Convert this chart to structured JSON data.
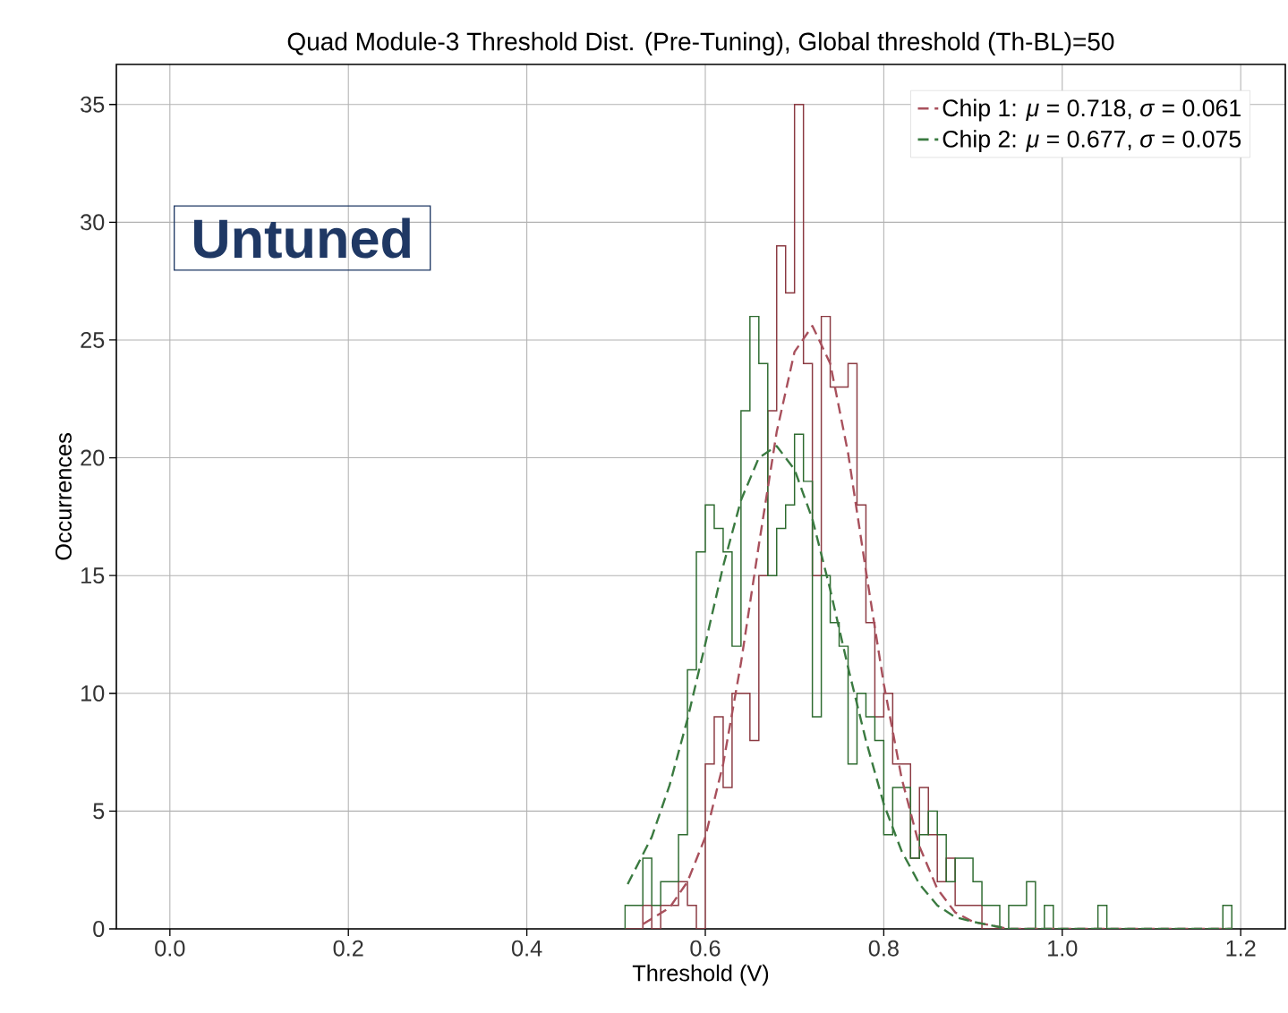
{
  "chart_data": {
    "type": "histogram",
    "title": "Quad Module-3 Threshold Dist. (Pre-Tuning), Global threshold (Th-BL)=50",
    "xlabel": "Threshold (V)",
    "ylabel": "Occurrences",
    "annotations": [
      "Untuned"
    ],
    "bins": [
      0.51,
      0.52,
      0.53,
      0.54,
      0.55,
      0.56,
      0.57,
      0.58,
      0.59,
      0.6,
      0.61,
      0.62,
      0.63,
      0.64,
      0.65,
      0.66,
      0.67,
      0.68,
      0.69,
      0.7,
      0.71,
      0.72,
      0.73,
      0.74,
      0.75,
      0.76,
      0.77,
      0.78,
      0.79,
      0.8,
      0.81,
      0.82,
      0.83,
      0.84,
      0.85,
      0.86,
      0.87,
      0.88,
      0.89,
      0.9,
      0.91,
      0.92,
      0.93,
      0.94,
      0.95,
      0.96,
      0.97,
      0.98,
      0.99,
      1.0,
      1.01,
      1.02,
      1.03,
      1.04,
      1.05,
      1.06,
      1.07,
      1.08,
      1.09,
      1.1,
      1.11,
      1.12,
      1.13,
      1.14,
      1.15,
      1.16,
      1.17,
      1.18,
      1.19
    ],
    "series": [
      {
        "color": "#8b3a42",
        "values": [
          0,
          0,
          1,
          0,
          1,
          1,
          2,
          1,
          0,
          7,
          9,
          6,
          10,
          10,
          8,
          15,
          22,
          29,
          27,
          35,
          24,
          15,
          26,
          23,
          23,
          24,
          18,
          13,
          9,
          10,
          7,
          7,
          3,
          6,
          4,
          2,
          3,
          1,
          1,
          1,
          0,
          0,
          0,
          0,
          0,
          0,
          0,
          0,
          0,
          0,
          0,
          0,
          0,
          0,
          0,
          0,
          0,
          0,
          0,
          0,
          0,
          0,
          0,
          0,
          0,
          0,
          0,
          0
        ]
      },
      {
        "color": "#2e6b30",
        "values": [
          1,
          1,
          3,
          1,
          2,
          2,
          4,
          11,
          16,
          18,
          17,
          16,
          12,
          22,
          26,
          24,
          15,
          17,
          18,
          21,
          19,
          9,
          15,
          13,
          12,
          7,
          10,
          9,
          8,
          4,
          6,
          6,
          3,
          4,
          5,
          4,
          2,
          3,
          3,
          2,
          1,
          1,
          0,
          1,
          1,
          2,
          0,
          1,
          0,
          0,
          0,
          0,
          0,
          1,
          0,
          0,
          0,
          0,
          0,
          0,
          0,
          0,
          0,
          0,
          0,
          0,
          0,
          1
        ]
      },
      {
        "type": "line",
        "name": "Chip 1: *μ* = 0.718, *σ* = 0.061",
        "color": "#a8505c",
        "line_style": "dashed",
        "x": [
          0.53,
          0.56,
          0.58,
          0.6,
          0.62,
          0.64,
          0.66,
          0.68,
          0.7,
          0.72,
          0.74,
          0.76,
          0.78,
          0.8,
          0.82,
          0.84,
          0.86,
          0.88,
          0.9,
          0.94,
          1.0,
          1.19
        ],
        "values": [
          0.2,
          0.9,
          2.0,
          3.9,
          7.0,
          11.3,
          16.3,
          21.1,
          24.5,
          25.6,
          24.0,
          20.2,
          15.2,
          10.4,
          6.4,
          3.5,
          1.7,
          0.7,
          0.3,
          0,
          0,
          0
        ]
      },
      {
        "type": "line",
        "name": "Chip 2: *μ* = 0.677, *σ* = 0.075",
        "color": "#3a7a40",
        "line_style": "dashed",
        "x": [
          0.513,
          0.54,
          0.56,
          0.58,
          0.6,
          0.62,
          0.64,
          0.66,
          0.68,
          0.7,
          0.72,
          0.74,
          0.76,
          0.78,
          0.8,
          0.82,
          0.84,
          0.86,
          0.88,
          0.9,
          0.94,
          1.0,
          1.19
        ],
        "values": [
          1.9,
          3.9,
          6.1,
          8.9,
          12.1,
          15.4,
          18.2,
          20.0,
          20.5,
          19.5,
          17.4,
          14.4,
          11.1,
          8.0,
          5.3,
          3.3,
          1.9,
          1.0,
          0.5,
          0.3,
          0,
          0,
          0
        ]
      }
    ],
    "xlim": [
      -0.06,
      1.25
    ],
    "ylim": [
      0,
      36.7
    ],
    "xticks": [
      {
        "value": 0,
        "label": "0.0"
      },
      0.2,
      0.4,
      0.6,
      0.8,
      {
        "value": 1,
        "label": "1.0"
      },
      1.2
    ],
    "yticks": [
      0,
      5,
      10,
      15,
      20,
      25,
      30,
      35
    ],
    "grid": true,
    "legend": "top right"
  }
}
